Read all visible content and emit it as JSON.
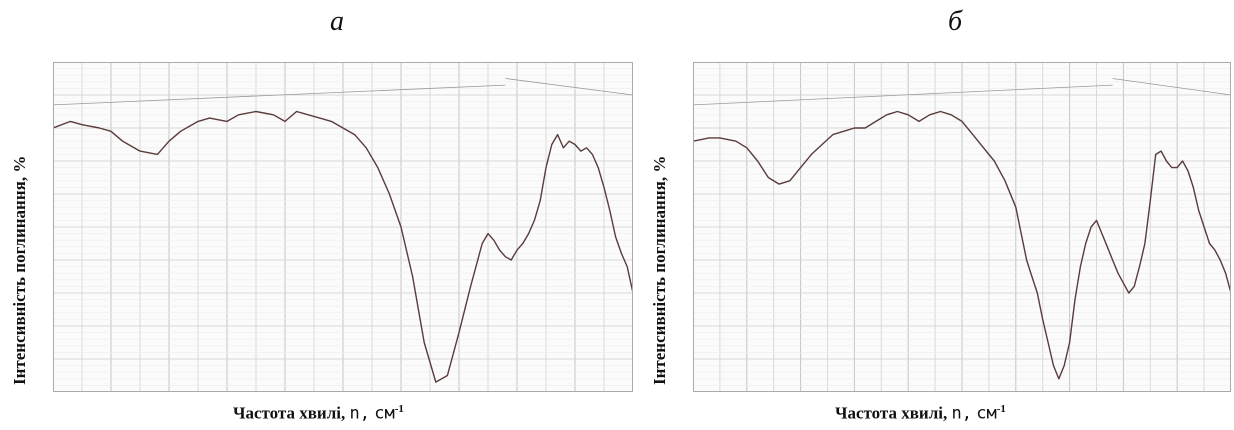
{
  "panels": [
    {
      "letter": "а",
      "ylabel": "Інтенсивність поглинання, %",
      "xlabel_text": "Частота хвилі,",
      "xlabel_symbol": "n,",
      "xlabel_unit": "см",
      "xlabel_exp": "-1"
    },
    {
      "letter": "б",
      "ylabel": "Інтенсивність поглинання, %",
      "xlabel_text": "Частота хвилі,",
      "xlabel_symbol": "n,",
      "xlabel_unit": "см",
      "xlabel_exp": "-1"
    }
  ],
  "chart_data": [
    {
      "type": "line",
      "xlim": [
        0,
        100
      ],
      "ylim": [
        0,
        100
      ],
      "grid": true,
      "x": [
        0,
        3,
        5,
        8,
        10,
        12,
        15,
        18,
        20,
        22,
        25,
        27,
        30,
        32,
        35,
        38,
        40,
        42,
        44,
        46,
        48,
        50,
        52,
        54,
        56,
        58,
        60,
        62,
        64,
        66,
        68,
        70,
        72,
        74,
        75,
        76,
        77,
        78,
        79,
        80,
        81,
        82,
        83,
        84,
        85,
        86,
        87,
        88,
        89,
        90,
        91,
        92,
        93,
        94,
        95,
        96,
        97,
        98,
        99,
        100
      ],
      "y": [
        80,
        82,
        81,
        80,
        79,
        76,
        73,
        72,
        76,
        79,
        82,
        83,
        82,
        84,
        85,
        84,
        82,
        85,
        84,
        83,
        82,
        80,
        78,
        74,
        68,
        60,
        50,
        35,
        15,
        3,
        5,
        18,
        32,
        45,
        48,
        46,
        43,
        41,
        40,
        43,
        45,
        48,
        52,
        58,
        68,
        75,
        78,
        74,
        76,
        75,
        73,
        74,
        72,
        68,
        62,
        55,
        47,
        42,
        38,
        30
      ]
    },
    {
      "type": "line",
      "xlim": [
        0,
        100
      ],
      "ylim": [
        0,
        100
      ],
      "grid": true,
      "x": [
        0,
        3,
        5,
        8,
        10,
        12,
        14,
        16,
        18,
        20,
        22,
        24,
        26,
        28,
        30,
        32,
        34,
        36,
        38,
        40,
        42,
        44,
        46,
        48,
        50,
        52,
        54,
        56,
        58,
        60,
        61,
        62,
        63,
        64,
        65,
        66,
        67,
        68,
        69,
        70,
        71,
        72,
        73,
        74,
        75,
        76,
        77,
        78,
        79,
        80,
        81,
        82,
        83,
        84,
        85,
        86,
        87,
        88,
        89,
        90,
        91,
        92,
        93,
        94,
        95,
        96,
        97,
        98,
        99,
        100
      ],
      "y": [
        76,
        77,
        77,
        76,
        74,
        70,
        65,
        63,
        64,
        68,
        72,
        75,
        78,
        79,
        80,
        80,
        82,
        84,
        85,
        84,
        82,
        84,
        85,
        84,
        82,
        78,
        74,
        70,
        64,
        56,
        48,
        40,
        35,
        30,
        22,
        15,
        8,
        4,
        8,
        15,
        28,
        38,
        45,
        50,
        52,
        48,
        44,
        40,
        36,
        33,
        30,
        32,
        38,
        45,
        58,
        72,
        73,
        70,
        68,
        68,
        70,
        67,
        62,
        55,
        50,
        45,
        43,
        40,
        36,
        30
      ]
    }
  ]
}
